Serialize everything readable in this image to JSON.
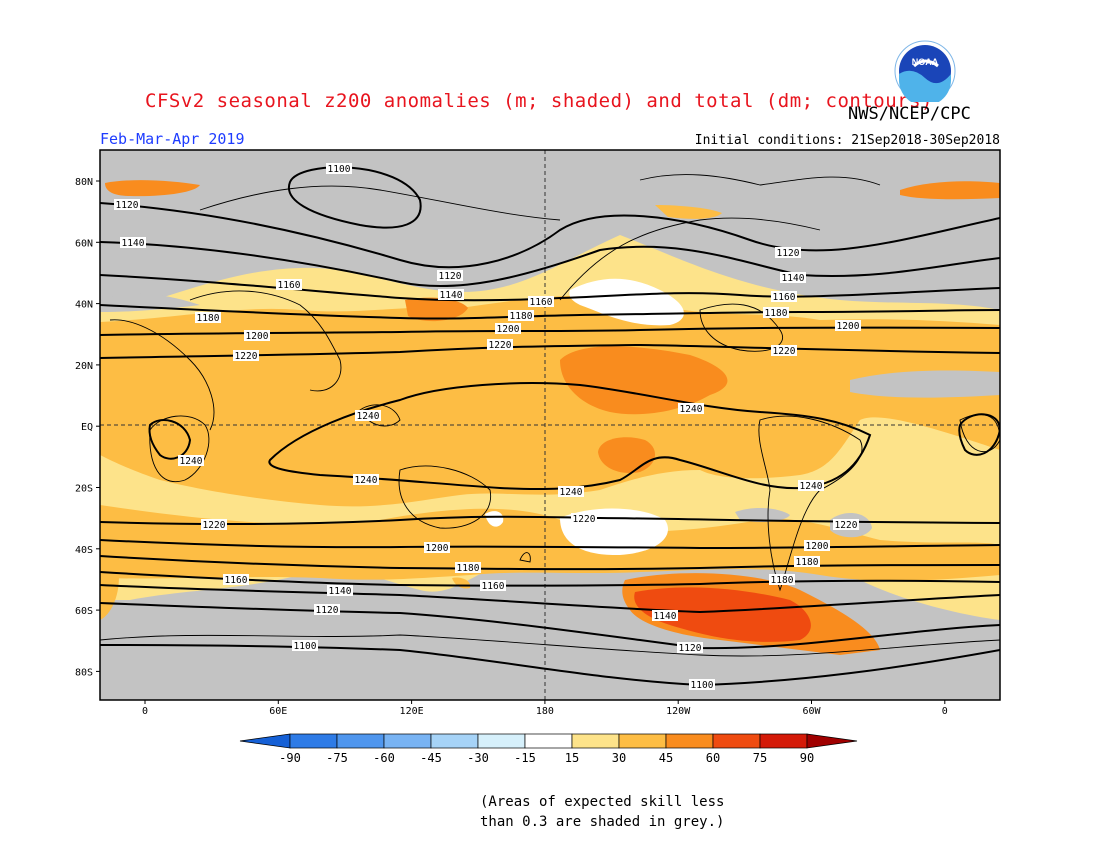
{
  "title": "CFSv2 seasonal z200 anomalies (m; shaded) and total (dm; contours)",
  "season": "Feb-Mar-Apr 2019",
  "initial_conditions": "Initial conditions: 21Sep2018-30Sep2018",
  "agency": "NWS/NCEP/CPC",
  "logo_text": "NOAA",
  "note_line1": "(Areas of expected skill less",
  "note_line2": "than 0.3 are shaded in grey.)",
  "lat_labels": [
    "80N",
    "60N",
    "40N",
    "20N",
    "EQ",
    "20S",
    "40S",
    "60S",
    "80S"
  ],
  "lon_labels": [
    "0",
    "60E",
    "120E",
    "180",
    "120W",
    "60W",
    "0"
  ],
  "colorbar": {
    "ticks": [
      "-90",
      "-75",
      "-60",
      "-45",
      "-30",
      "-15",
      "15",
      "30",
      "45",
      "60",
      "75",
      "90"
    ],
    "colors": [
      "#1560d6",
      "#2e7be6",
      "#4f96ee",
      "#78b3f3",
      "#a6d3f7",
      "#d6f0fb",
      "#ffffff",
      "#fde38a",
      "#fdbd44",
      "#f98c1e",
      "#ef4b10",
      "#d41a08",
      "#a00000"
    ]
  },
  "colors": {
    "grey": "#c3c3c3",
    "c15": "#ffffff",
    "c30": "#fde38a",
    "c45": "#fdbd44",
    "c60": "#f98c1e",
    "c75": "#ef4b10",
    "title": "#e8141e",
    "season": "#1e3cff"
  },
  "contour_labels": {
    "1100": "1100",
    "1120": "1120",
    "1140": "1140",
    "1160": "1160",
    "1180": "1180",
    "1200": "1200",
    "1220": "1220",
    "1240": "1240"
  },
  "icons": {
    "logo": "noaa-logo"
  }
}
